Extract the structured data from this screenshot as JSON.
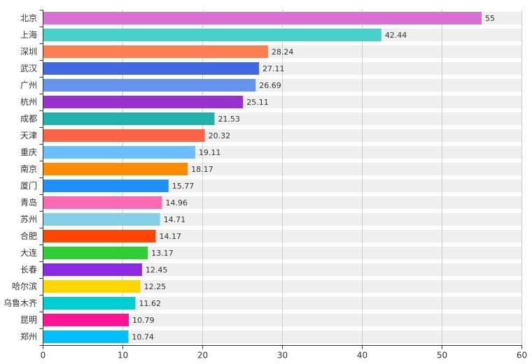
{
  "chart_data": {
    "type": "bar",
    "orientation": "horizontal",
    "title": "",
    "xlabel": "",
    "ylabel": "",
    "xlim": [
      0,
      60
    ],
    "x_ticks": [
      "0",
      "10",
      "20",
      "30",
      "40",
      "50",
      "60"
    ],
    "grid": true,
    "legend": "none",
    "background_track": true,
    "categories": [
      "北京",
      "上海",
      "深圳",
      "武汉",
      "广州",
      "杭州",
      "成都",
      "天津",
      "重庆",
      "南京",
      "厦门",
      "青岛",
      "苏州",
      "合肥",
      "大连",
      "长春",
      "哈尔滨",
      "乌鲁木齐",
      "昆明",
      "郑州"
    ],
    "values": [
      55,
      42.44,
      28.24,
      27.11,
      26.69,
      25.11,
      21.53,
      20.32,
      19.11,
      18.17,
      15.77,
      14.96,
      14.71,
      14.17,
      13.17,
      12.45,
      12.25,
      11.62,
      10.79,
      10.74
    ],
    "value_labels": [
      "55",
      "42.44",
      "28.24",
      "27.11",
      "26.69",
      "25.11",
      "21.53",
      "20.32",
      "19.11",
      "18.17",
      "15.77",
      "14.96",
      "14.71",
      "14.17",
      "13.17",
      "12.45",
      "12.25",
      "11.62",
      "10.79",
      "10.74"
    ],
    "colors": [
      "#DA70D6",
      "#48D1CC",
      "#FF7F50",
      "#4169E1",
      "#6495ED",
      "#9932CC",
      "#20B2AA",
      "#FF6347",
      "#6CBFFF",
      "#FF8C00",
      "#1E90FF",
      "#FF69B4",
      "#87CEEB",
      "#FF4500",
      "#32CD32",
      "#8A2BE2",
      "#FFD700",
      "#00CED1",
      "#FF1493",
      "#00BFFF"
    ]
  },
  "style": {
    "track_color": "#EFEFEF",
    "grid_color": "#CCCCCC",
    "axis_color": "#333333"
  }
}
